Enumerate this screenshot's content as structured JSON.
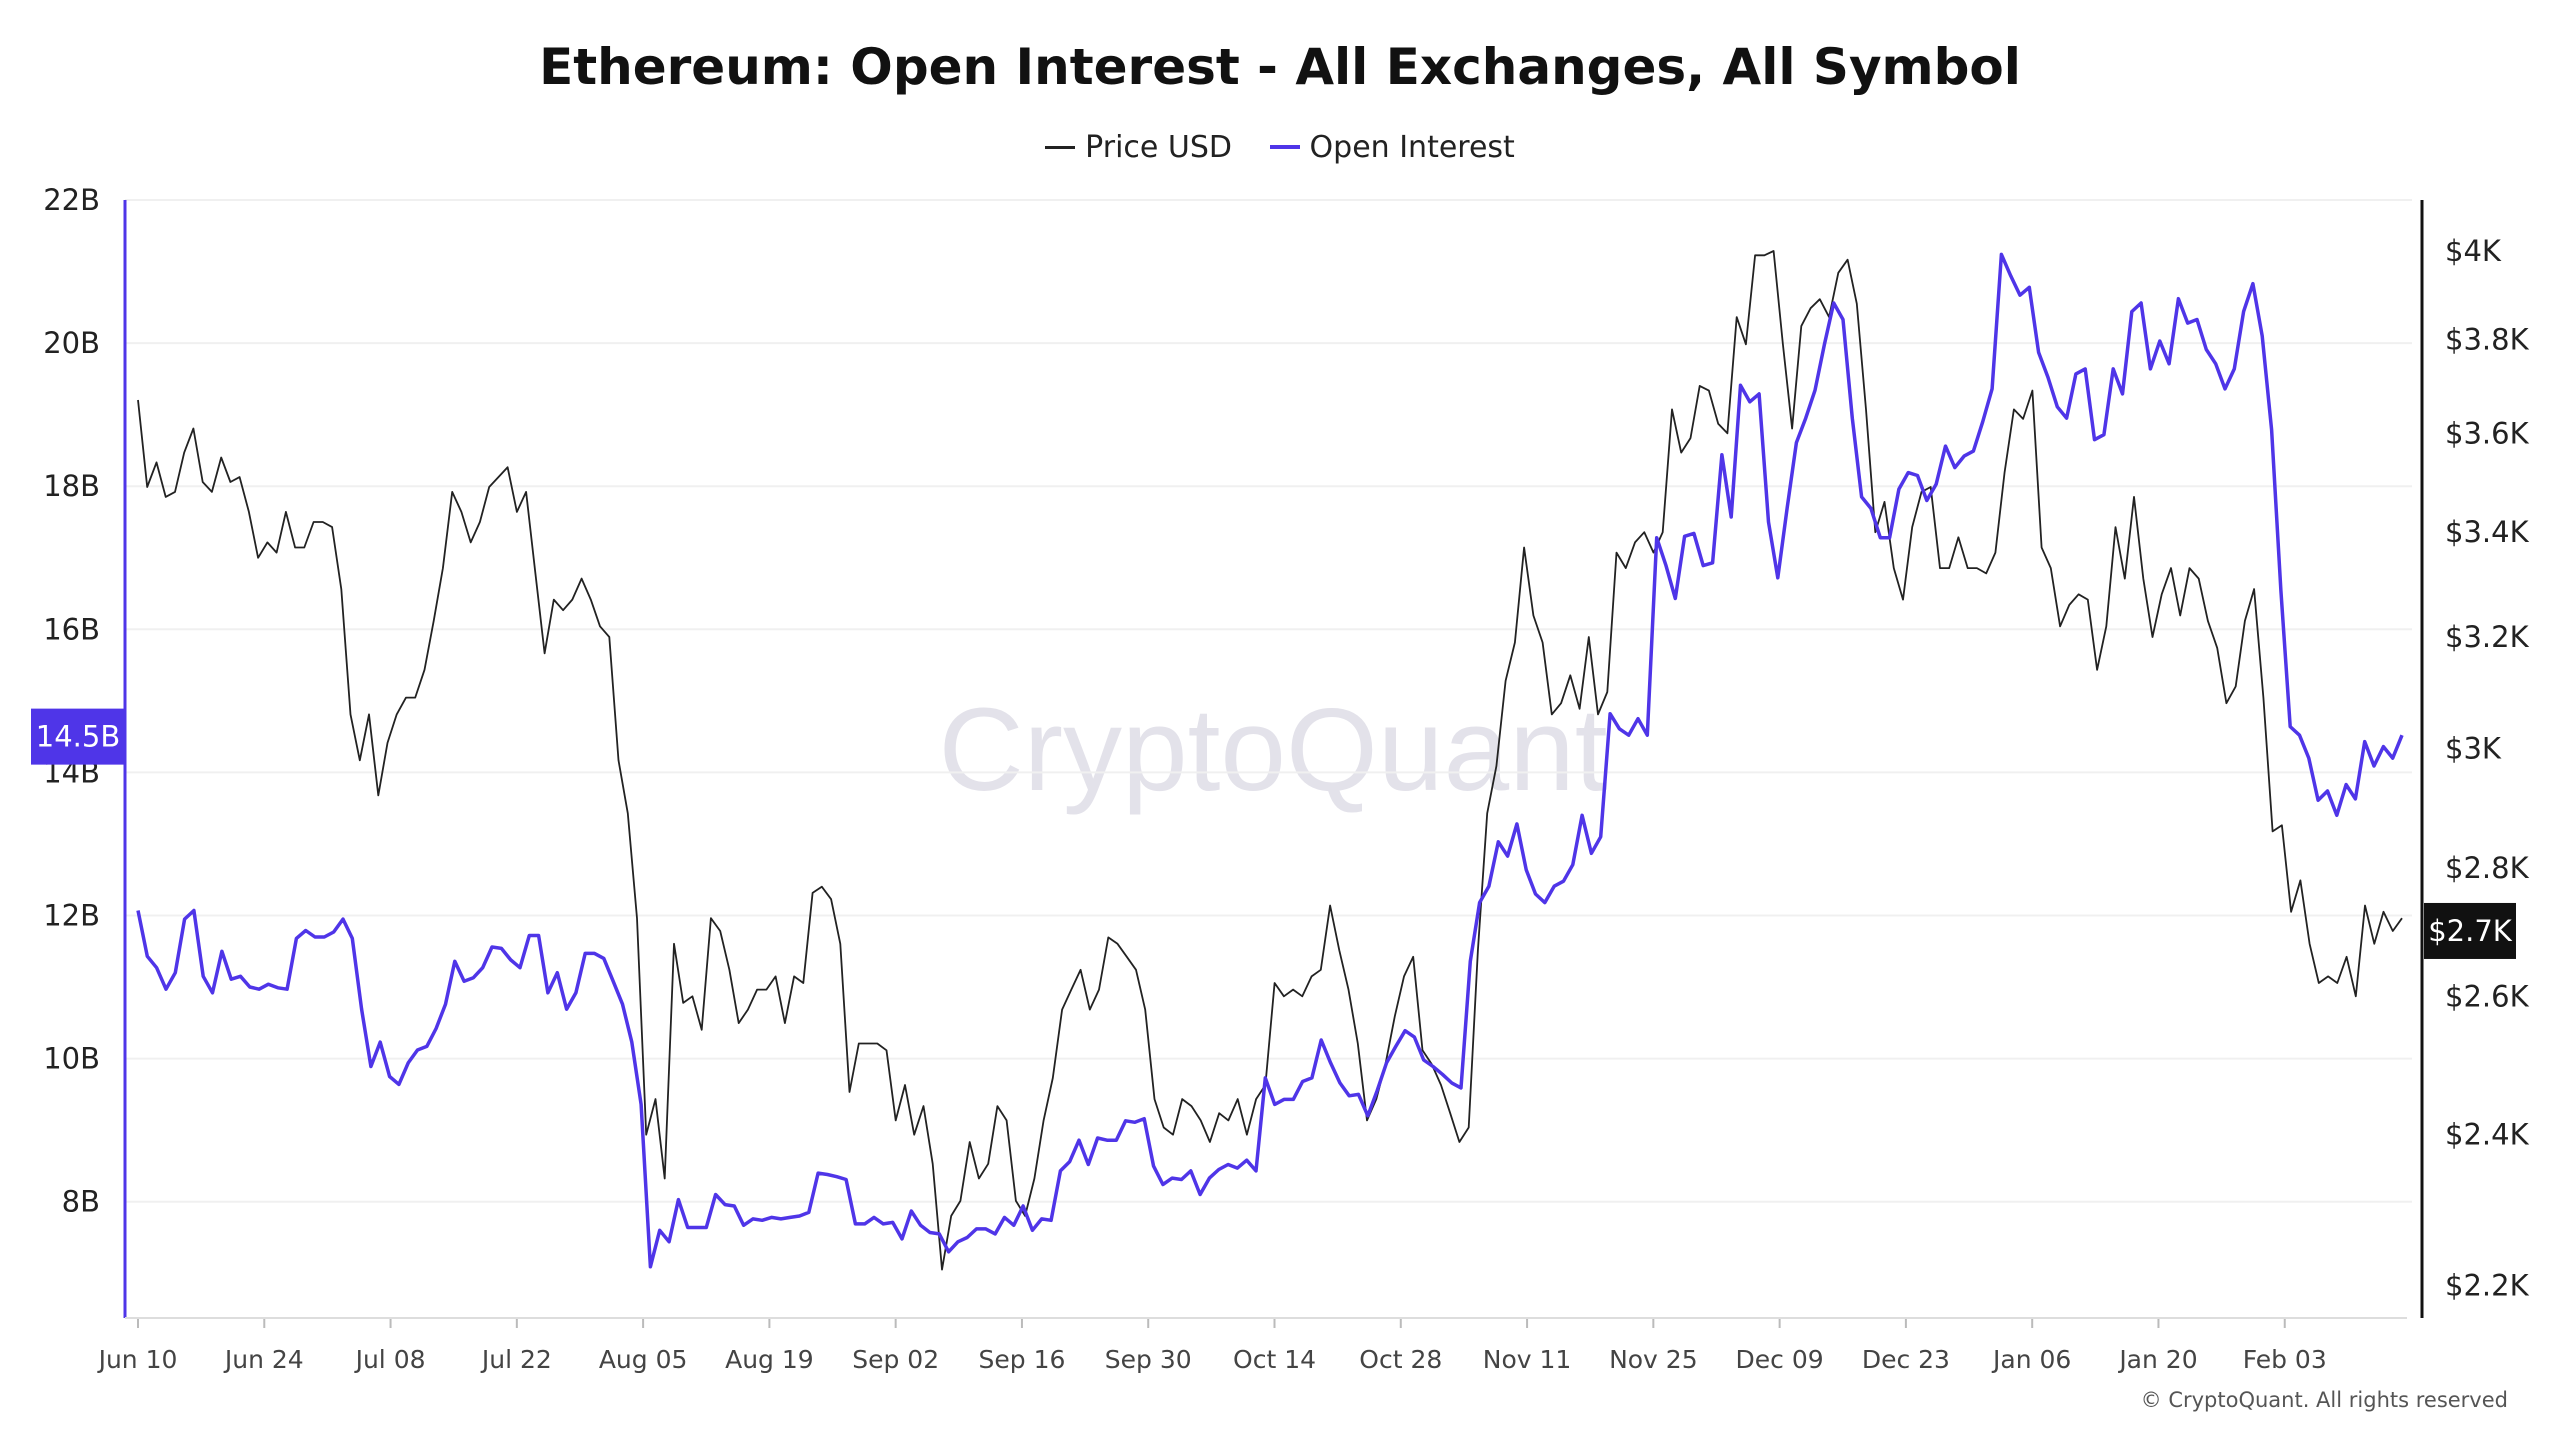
{
  "chart_data": {
    "type": "line",
    "title": "Ethereum: Open Interest - All Exchanges, All Symbol",
    "legend_position": "top",
    "grid": true,
    "x_start": "2024-06-10",
    "x_end": "2025-02-16",
    "x_frequency": "daily",
    "x_tick_labels": [
      "Jun 10",
      "Jun 24",
      "Jul 08",
      "Jul 22",
      "Aug 05",
      "Aug 19",
      "Sep 02",
      "Sep 16",
      "Sep 30",
      "Oct 14",
      "Oct 28",
      "Nov 11",
      "Nov 25",
      "Dec 09",
      "Dec 23",
      "Jan 06",
      "Jan 20",
      "Feb 03"
    ],
    "y_left": {
      "ylim": [
        6.4,
        22
      ],
      "ticks": [
        8,
        10,
        12,
        14,
        16,
        18,
        20,
        22
      ],
      "tick_labels": [
        "8B",
        "10B",
        "12B",
        "14B",
        "16B",
        "18B",
        "20B",
        "22B"
      ],
      "current_label": "14.5B",
      "current_value": 14.5
    },
    "y_right": {
      "scale": "log",
      "ylim": [
        2200,
        4000
      ],
      "ticks": [
        2200,
        2400,
        2600,
        2800,
        3000,
        3200,
        3400,
        3600,
        3800,
        4000
      ],
      "tick_labels": [
        "$2.2K",
        "$2.4K",
        "$2.6K",
        "$2.8K",
        "$3K",
        "$3.2K",
        "$3.4K",
        "$3.6K",
        "$3.8K",
        "$4K"
      ],
      "current_label": "$2.7K",
      "current_value": 2700
    },
    "series": [
      {
        "name": "Price USD",
        "axis": "right",
        "color": "#222222",
        "values": [
          3670,
          3490,
          3540,
          3470,
          3480,
          3560,
          3610,
          3500,
          3480,
          3550,
          3500,
          3510,
          3440,
          3350,
          3380,
          3360,
          3440,
          3370,
          3370,
          3420,
          3420,
          3410,
          3290,
          3060,
          2980,
          3060,
          2920,
          3010,
          3060,
          3090,
          3090,
          3140,
          3230,
          3330,
          3480,
          3440,
          3380,
          3420,
          3490,
          3510,
          3530,
          3440,
          3480,
          3320,
          3170,
          3270,
          3250,
          3270,
          3310,
          3270,
          3220,
          3200,
          2980,
          2890,
          2720,
          2400,
          2450,
          2340,
          2680,
          2590,
          2600,
          2550,
          2720,
          2700,
          2640,
          2560,
          2580,
          2610,
          2610,
          2630,
          2560,
          2630,
          2620,
          2760,
          2770,
          2750,
          2680,
          2460,
          2530,
          2530,
          2530,
          2520,
          2420,
          2470,
          2400,
          2440,
          2360,
          2220,
          2290,
          2310,
          2390,
          2340,
          2360,
          2440,
          2420,
          2310,
          2290,
          2340,
          2420,
          2480,
          2580,
          2610,
          2640,
          2580,
          2610,
          2690,
          2680,
          2660,
          2640,
          2580,
          2450,
          2410,
          2400,
          2450,
          2440,
          2420,
          2390,
          2430,
          2420,
          2450,
          2400,
          2450,
          2470,
          2620,
          2600,
          2610,
          2600,
          2630,
          2640,
          2740,
          2670,
          2610,
          2530,
          2420,
          2450,
          2500,
          2570,
          2630,
          2660,
          2520,
          2500,
          2470,
          2430,
          2390,
          2410,
          2670,
          2890,
          2970,
          3120,
          3190,
          3370,
          3240,
          3190,
          3060,
          3080,
          3130,
          3070,
          3200,
          3060,
          3100,
          3360,
          3330,
          3380,
          3400,
          3360,
          3400,
          3650,
          3560,
          3590,
          3700,
          3690,
          3620,
          3600,
          3850,
          3790,
          3990,
          3990,
          4000,
          3790,
          3610,
          3830,
          3870,
          3890,
          3850,
          3950,
          3980,
          3880,
          3650,
          3400,
          3460,
          3330,
          3270,
          3410,
          3480,
          3490,
          3330,
          3330,
          3390,
          3330,
          3330,
          3320,
          3360,
          3520,
          3650,
          3630,
          3690,
          3370,
          3330,
          3220,
          3260,
          3280,
          3270,
          3140,
          3220,
          3410,
          3310,
          3470,
          3310,
          3200,
          3280,
          3330,
          3240,
          3330,
          3310,
          3230,
          3180,
          3080,
          3110,
          3230,
          3290,
          3090,
          2860,
          2870,
          2730,
          2780,
          2680,
          2620,
          2630,
          2620,
          2660,
          2600,
          2740,
          2680,
          2730,
          2700,
          2720
        ]
      },
      {
        "name": "Open Interest",
        "axis": "left",
        "color": "#4f35e8",
        "values": [
          12.07,
          11.43,
          11.27,
          10.97,
          11.2,
          11.95,
          12.07,
          11.15,
          10.92,
          11.5,
          11.11,
          11.15,
          11.0,
          10.97,
          11.04,
          10.99,
          10.97,
          11.68,
          11.79,
          11.7,
          11.7,
          11.77,
          11.95,
          11.68,
          10.69,
          9.89,
          10.23,
          9.75,
          9.64,
          9.94,
          10.12,
          10.17,
          10.42,
          10.76,
          11.36,
          11.08,
          11.13,
          11.27,
          11.56,
          11.54,
          11.38,
          11.27,
          11.72,
          11.72,
          10.92,
          11.2,
          10.69,
          10.92,
          11.47,
          11.47,
          11.4,
          11.08,
          10.76,
          10.23,
          9.36,
          7.09,
          7.6,
          7.44,
          8.03,
          7.64,
          7.64,
          7.64,
          8.1,
          7.96,
          7.94,
          7.67,
          7.76,
          7.74,
          7.78,
          7.76,
          7.78,
          7.8,
          7.85,
          8.4,
          8.38,
          8.35,
          8.31,
          7.69,
          7.69,
          7.78,
          7.69,
          7.71,
          7.48,
          7.87,
          7.67,
          7.57,
          7.55,
          7.3,
          7.44,
          7.5,
          7.62,
          7.62,
          7.55,
          7.78,
          7.67,
          7.94,
          7.6,
          7.76,
          7.74,
          8.43,
          8.56,
          8.86,
          8.52,
          8.89,
          8.86,
          8.86,
          9.13,
          9.11,
          9.16,
          8.5,
          8.24,
          8.33,
          8.31,
          8.43,
          8.1,
          8.33,
          8.45,
          8.52,
          8.47,
          8.58,
          8.43,
          9.73,
          9.36,
          9.43,
          9.43,
          9.68,
          9.73,
          10.26,
          9.94,
          9.66,
          9.48,
          9.5,
          9.2,
          9.55,
          9.94,
          10.17,
          10.39,
          10.3,
          9.98,
          9.89,
          9.78,
          9.66,
          9.59,
          11.36,
          12.18,
          12.41,
          13.03,
          12.83,
          13.28,
          12.64,
          12.3,
          12.18,
          12.41,
          12.48,
          12.71,
          13.4,
          12.87,
          13.1,
          14.82,
          14.61,
          14.52,
          14.75,
          14.52,
          17.28,
          16.89,
          16.43,
          17.3,
          17.34,
          16.89,
          16.93,
          18.44,
          17.57,
          19.41,
          19.18,
          19.29,
          17.5,
          16.72,
          17.69,
          18.61,
          18.95,
          19.34,
          19.98,
          20.56,
          20.33,
          18.95,
          17.85,
          17.69,
          17.28,
          17.28,
          17.96,
          18.19,
          18.15,
          17.8,
          18.03,
          18.56,
          18.26,
          18.42,
          18.49,
          18.9,
          19.36,
          21.24,
          20.94,
          20.67,
          20.78,
          19.87,
          19.52,
          19.11,
          18.95,
          19.57,
          19.64,
          18.65,
          18.72,
          19.64,
          19.29,
          20.44,
          20.56,
          19.64,
          20.03,
          19.71,
          20.62,
          20.28,
          20.33,
          19.91,
          19.71,
          19.36,
          19.64,
          20.44,
          20.83,
          20.1,
          18.79,
          16.54,
          14.64,
          14.52,
          14.2,
          13.61,
          13.74,
          13.4,
          13.83,
          13.63,
          14.43,
          14.09,
          14.36,
          14.2,
          14.52
        ]
      }
    ]
  },
  "watermark": "CryptoQuant",
  "copyright": "© CryptoQuant. All rights reserved",
  "colors": {
    "price": "#222222",
    "open_interest": "#4f35e8",
    "grid": "#f0f0f0",
    "watermark": "#e3e2ea"
  }
}
